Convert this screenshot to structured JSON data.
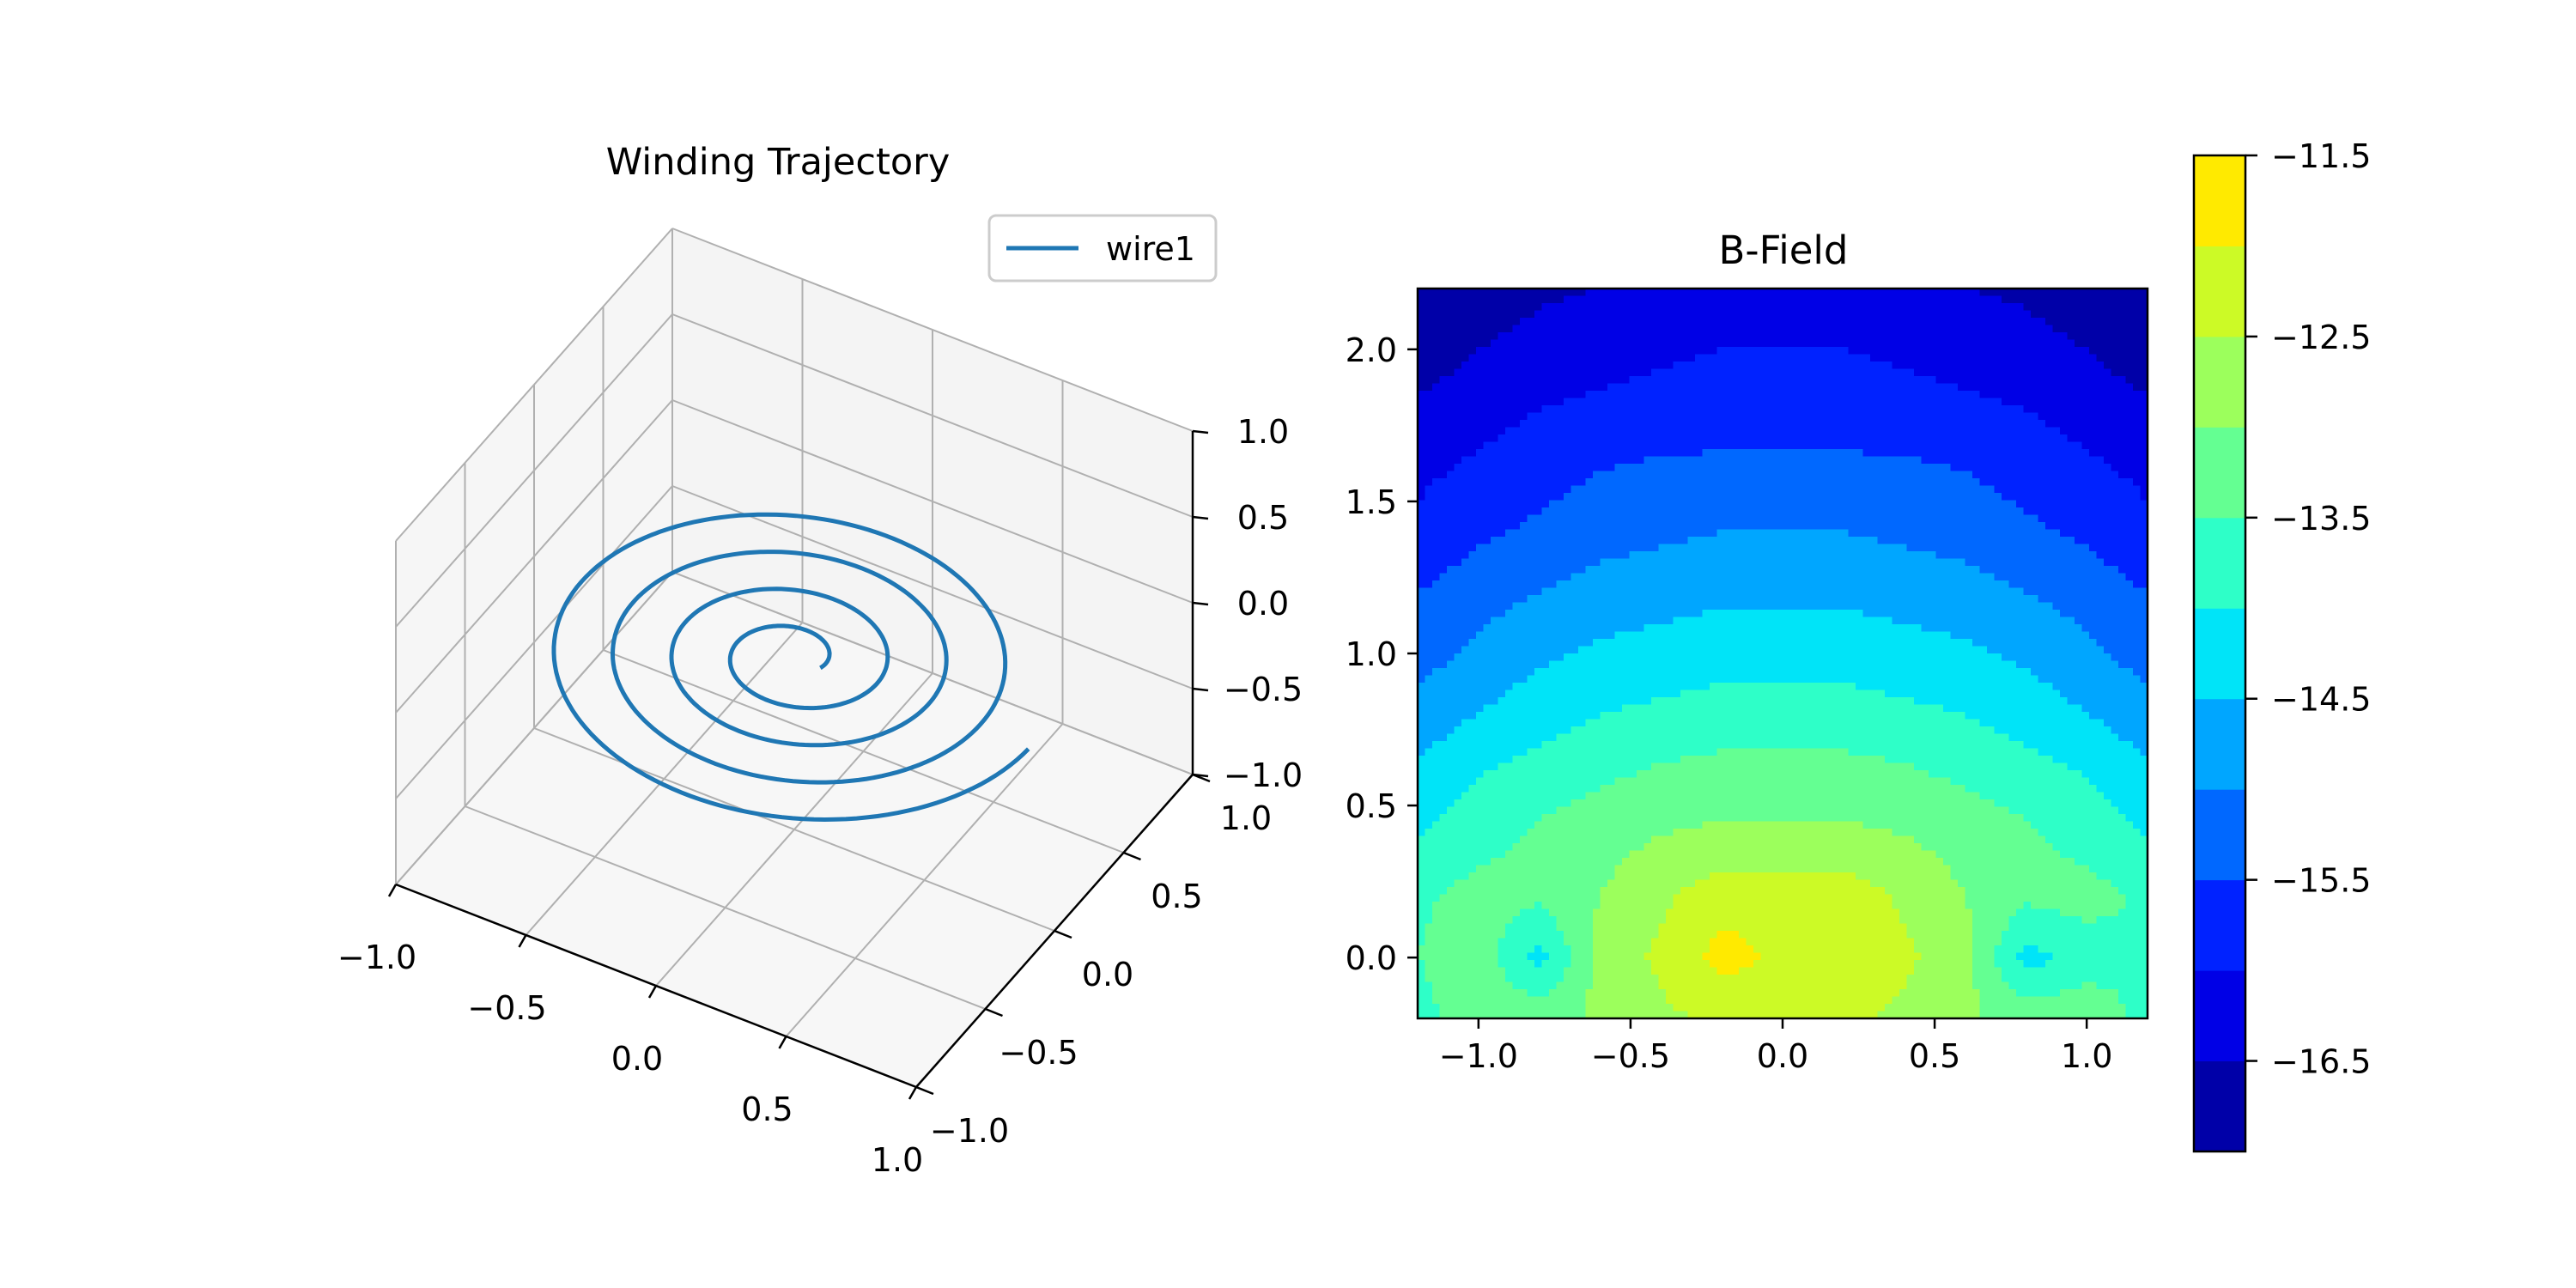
{
  "chart_data": [
    {
      "type": "line3d",
      "title": "Winding Trajectory",
      "legend": {
        "placement": "top-right",
        "entries": [
          "wire1"
        ]
      },
      "series": [
        {
          "name": "wire1",
          "color": "#1f77b4",
          "curve": "spiral",
          "z": 0,
          "r_start": 0.1,
          "r_end": 0.9,
          "turns": 4
        }
      ],
      "xlim": [
        -1,
        1
      ],
      "ylim": [
        -1,
        1
      ],
      "zlim": [
        -1,
        1
      ],
      "xticks": [
        "−1.0",
        "−0.5",
        "0.0",
        "0.5",
        "1.0"
      ],
      "yticks": [
        "−1.0",
        "−0.5",
        "0.0",
        "0.5",
        "1.0"
      ],
      "zticks": [
        "−1.0",
        "−0.5",
        "0.0",
        "0.5",
        "1.0"
      ],
      "grid": true
    },
    {
      "type": "heatmap",
      "title": "B-Field",
      "xlim": [
        -1.2,
        1.2
      ],
      "ylim": [
        -0.2,
        2.2
      ],
      "xticks": [
        "−1.0",
        "−0.5",
        "0.0",
        "0.5",
        "1.0"
      ],
      "yticks": [
        "0.0",
        "0.5",
        "1.0",
        "1.5",
        "2.0"
      ],
      "x": [
        -1.2,
        -1.0,
        -0.8,
        -0.6,
        -0.4,
        -0.2,
        0.0,
        0.2,
        0.4,
        0.6,
        0.8,
        1.0,
        1.2
      ],
      "y": [
        -0.2,
        0.0,
        0.2,
        0.4,
        0.6,
        0.8,
        1.0,
        1.2,
        1.4,
        1.6,
        1.8,
        2.0,
        2.2
      ],
      "z": [
        [
          -13.7,
          -13.1,
          -13.2,
          -12.9,
          -12.6,
          -12.4,
          -12.3,
          -12.4,
          -12.6,
          -12.9,
          -13.2,
          -13.1,
          -13.7
        ],
        [
          -13.5,
          -13.2,
          -14.2,
          -12.8,
          -12.4,
          -11.8,
          -12.1,
          -12.2,
          -12.4,
          -12.8,
          -14.2,
          -13.8,
          -13.5
        ],
        [
          -13.6,
          -13.3,
          -13.4,
          -13.0,
          -12.6,
          -12.2,
          -12.2,
          -12.2,
          -12.6,
          -13.0,
          -13.4,
          -13.3,
          -13.6
        ],
        [
          -14.0,
          -13.7,
          -13.4,
          -13.2,
          -13.0,
          -12.9,
          -12.9,
          -12.9,
          -13.0,
          -13.2,
          -13.4,
          -13.7,
          -14.0
        ],
        [
          -14.4,
          -14.0,
          -13.8,
          -13.6,
          -13.4,
          -13.3,
          -13.3,
          -13.3,
          -13.4,
          -13.6,
          -13.8,
          -14.0,
          -14.4
        ],
        [
          -14.8,
          -14.5,
          -14.2,
          -14.0,
          -13.9,
          -13.8,
          -13.8,
          -13.8,
          -13.9,
          -14.0,
          -14.2,
          -14.5,
          -14.8
        ],
        [
          -15.2,
          -14.9,
          -14.6,
          -14.4,
          -14.3,
          -14.2,
          -14.2,
          -14.2,
          -14.3,
          -14.4,
          -14.6,
          -14.9,
          -15.2
        ],
        [
          -15.5,
          -15.2,
          -15.0,
          -14.8,
          -14.7,
          -14.6,
          -14.6,
          -14.6,
          -14.7,
          -14.8,
          -15.0,
          -15.2,
          -15.5
        ],
        [
          -15.9,
          -15.6,
          -15.4,
          -15.2,
          -15.1,
          -15.0,
          -15.0,
          -15.0,
          -15.1,
          -15.2,
          -15.4,
          -15.6,
          -15.9
        ],
        [
          -16.1,
          -15.9,
          -15.7,
          -15.5,
          -15.4,
          -15.4,
          -15.4,
          -15.4,
          -15.4,
          -15.5,
          -15.7,
          -15.9,
          -16.1
        ],
        [
          -16.4,
          -16.2,
          -16.0,
          -15.9,
          -15.8,
          -15.7,
          -15.7,
          -15.7,
          -15.8,
          -15.9,
          -16.0,
          -16.2,
          -16.4
        ],
        [
          -16.8,
          -16.5,
          -16.3,
          -16.2,
          -16.1,
          -16.0,
          -16.0,
          -16.0,
          -16.1,
          -16.2,
          -16.3,
          -16.5,
          -16.8
        ],
        [
          -17.0,
          -16.8,
          -16.6,
          -16.5,
          -16.4,
          -16.3,
          -16.3,
          -16.3,
          -16.4,
          -16.5,
          -16.6,
          -16.8,
          -17.0
        ]
      ],
      "levels": [
        -17.0,
        -16.5,
        -16.0,
        -15.5,
        -15.0,
        -14.5,
        -14.0,
        -13.5,
        -13.0,
        -12.5,
        -12.0,
        -11.5
      ],
      "level_colors": [
        "#0000a8",
        "#0000e6",
        "#0022ff",
        "#0068ff",
        "#00a6ff",
        "#00e4f8",
        "#2effc8",
        "#64ff92",
        "#9cff5c",
        "#ccfa26",
        "#ffea00"
      ],
      "colorbar": {
        "ticks": [
          -16.5,
          -15.5,
          -14.5,
          -13.5,
          -12.5,
          -11.5
        ],
        "tick_labels": [
          "−16.5",
          "−15.5",
          "−14.5",
          "−13.5",
          "−12.5",
          "−11.5"
        ]
      }
    }
  ]
}
